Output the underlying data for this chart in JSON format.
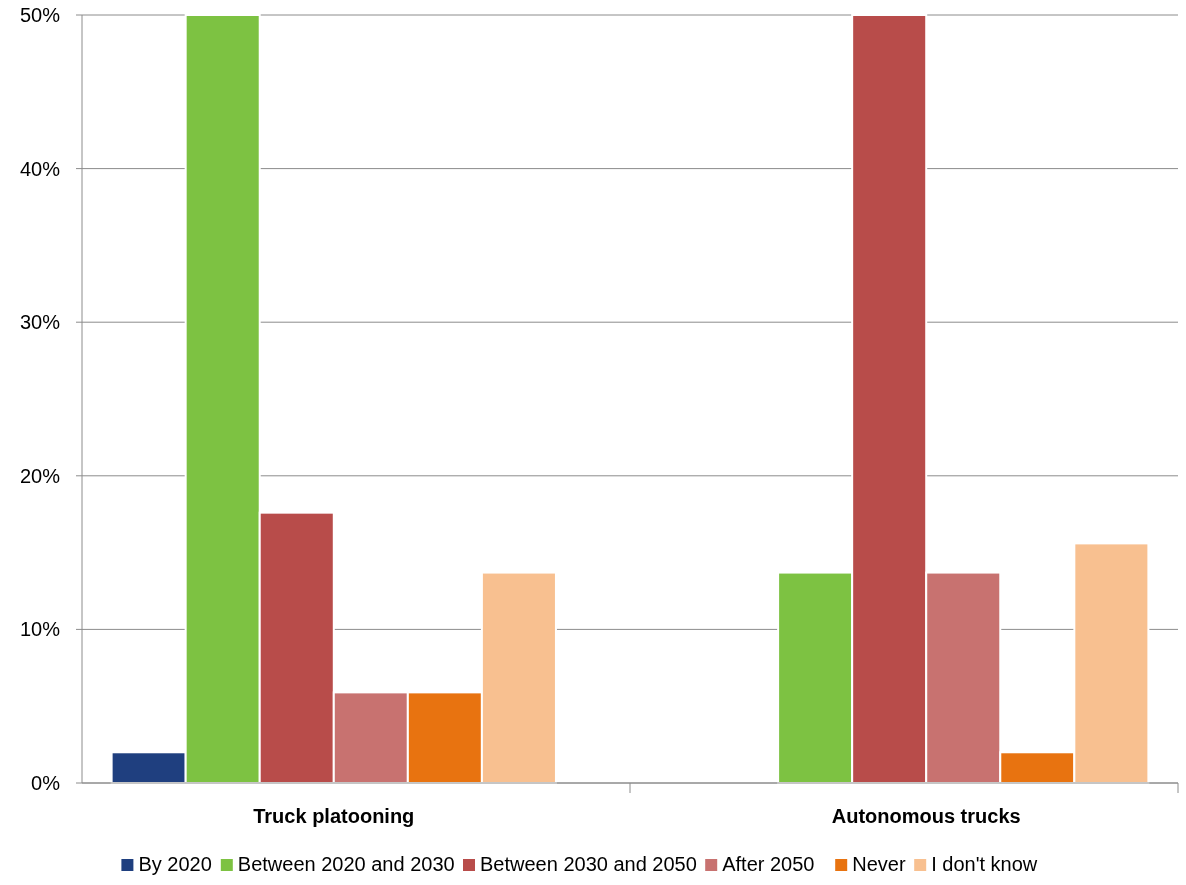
{
  "chart_data": {
    "type": "bar",
    "categories": [
      "Truck platooning",
      "Autonomous trucks"
    ],
    "series": [
      {
        "name": "By 2020",
        "color": "#1f3f7f",
        "values": [
          2.0,
          0
        ]
      },
      {
        "name": "Between 2020 and 2030",
        "color": "#7dc242",
        "values": [
          50,
          13.7
        ]
      },
      {
        "name": "Between 2030 and 2050",
        "color": "#b84c4a",
        "values": [
          17.6,
          50
        ]
      },
      {
        "name": "After 2050",
        "color": "#c87270",
        "values": [
          5.9,
          13.7
        ]
      },
      {
        "name": "Never",
        "color": "#e87310",
        "values": [
          5.9,
          2.0
        ]
      },
      {
        "name": "I don't know",
        "color": "#f8c090",
        "values": [
          13.7,
          15.6
        ]
      }
    ],
    "ylim": [
      0,
      50
    ],
    "yticks": [
      {
        "value": 0,
        "label": "0%"
      },
      {
        "value": 10,
        "label": "10%"
      },
      {
        "value": 20,
        "label": "20%"
      },
      {
        "value": 30,
        "label": "30%"
      },
      {
        "value": 40,
        "label": "40%"
      },
      {
        "value": 50,
        "label": "50%"
      }
    ],
    "grid": "y",
    "legend": "bottom"
  }
}
